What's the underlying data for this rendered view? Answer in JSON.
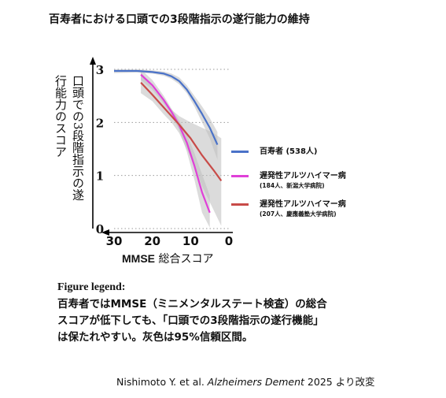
{
  "title": "百寿者における口頭での3段階指示の遂行能力の維持",
  "chart_data": {
    "type": "line",
    "title": "百寿者における口頭での3段階指示の遂行能力の維持",
    "xlabel_bold": "MMSE",
    "xlabel_rest": " 総合スコア",
    "ylabel": "口頭での3段階指示の遂行能力のスコア",
    "xlim": [
      30,
      0
    ],
    "ylim": [
      0,
      3
    ],
    "x_ticks": [
      "30",
      "20",
      "10",
      "0"
    ],
    "y_ticks": [
      "3",
      "2",
      "1",
      "0"
    ],
    "grid": "dotted horizontal",
    "legend_position": "right",
    "series": [
      {
        "name": "百寿者 (538人)",
        "color": "#4a72c8",
        "x": [
          30,
          24,
          20,
          17,
          15,
          13,
          11,
          9,
          7,
          5,
          3
        ],
        "y": [
          2.97,
          2.97,
          2.95,
          2.92,
          2.87,
          2.78,
          2.62,
          2.4,
          2.16,
          1.9,
          1.58
        ],
        "ci_lower": [
          2.93,
          2.94,
          2.92,
          2.88,
          2.82,
          2.72,
          2.55,
          2.3,
          2.0,
          1.7,
          1.3
        ],
        "ci_upper": [
          3.0,
          3.0,
          2.98,
          2.96,
          2.92,
          2.85,
          2.7,
          2.5,
          2.3,
          2.08,
          1.82
        ]
      },
      {
        "name": "遅発性アルツハイマー病",
        "subtitle": "(184人、新潟大学病院)",
        "color": "#e040d8",
        "x": [
          23,
          20,
          17,
          15,
          13,
          11,
          9,
          7,
          5
        ],
        "y": [
          2.9,
          2.7,
          2.42,
          2.2,
          1.95,
          1.62,
          1.18,
          0.68,
          0.3
        ],
        "ci_lower": [
          2.8,
          2.62,
          2.35,
          2.14,
          1.86,
          1.45,
          0.92,
          0.3,
          0.02
        ],
        "ci_upper": [
          3.0,
          2.8,
          2.5,
          2.26,
          2.04,
          1.78,
          1.42,
          1.02,
          0.62
        ]
      },
      {
        "name": "遅発性アルツハイマー病",
        "subtitle": "(207人、慶應義塾大学病院)",
        "color": "#c84b48",
        "x": [
          23,
          20,
          17,
          15,
          13,
          10,
          7,
          4,
          2
        ],
        "y": [
          2.75,
          2.52,
          2.28,
          2.12,
          1.96,
          1.7,
          1.38,
          1.1,
          0.9
        ],
        "ci_lower": [
          2.55,
          2.4,
          2.15,
          2.0,
          1.8,
          1.35,
          0.8,
          0.35,
          0.05
        ],
        "ci_upper": [
          2.95,
          2.66,
          2.4,
          2.24,
          2.12,
          2.0,
          1.9,
          1.8,
          1.7
        ]
      }
    ]
  },
  "legend": {
    "centenarian": "百寿者 (538人)",
    "ad_niigata": "遅発性アルツハイマー病",
    "ad_niigata_sub": "(184人、新潟大学病院)",
    "ad_keio": "遅発性アルツハイマー病",
    "ad_keio_sub": "(207人、慶應義塾大学病院)"
  },
  "figure_legend": {
    "heading": "Figure legend:",
    "line1": "百寿者ではMMSE（ミニメンタルステート検査）の総合",
    "line2": "スコアが低下しても、「口頭での3段階指示の遂行機能」",
    "line3": "は保たれやすい。灰色は95%信頼区間。"
  },
  "citation": {
    "authors": "Nishimoto Y. et al. ",
    "journal": "Alzheimers Dement",
    "rest": " 2025 より改変"
  }
}
